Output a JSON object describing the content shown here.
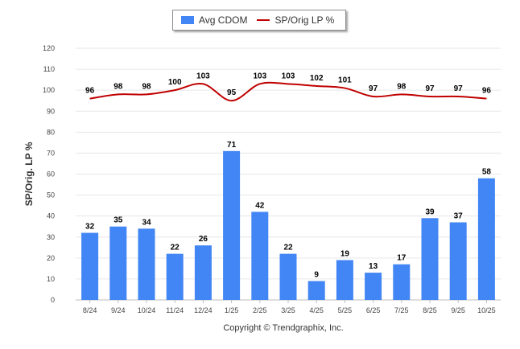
{
  "legend": {
    "bar_label": "Avg CDOM",
    "line_label": "SP/Orig LP %"
  },
  "copyright": "Copyright © Trendgraphix, Inc.",
  "chart_data": {
    "type": "bar",
    "title": "",
    "xlabel": "",
    "ylabel": "SP/Orig. LP %",
    "ylim": [
      0,
      120
    ],
    "yticks": [
      0,
      10,
      20,
      30,
      40,
      50,
      60,
      70,
      80,
      90,
      100,
      110,
      120
    ],
    "grid": true,
    "legend_position": "top-center",
    "categories": [
      "8/24",
      "9/24",
      "10/24",
      "11/24",
      "12/24",
      "1/25",
      "2/25",
      "3/25",
      "4/25",
      "5/25",
      "6/25",
      "7/25",
      "8/25",
      "9/25",
      "10/25"
    ],
    "series": [
      {
        "name": "Avg CDOM",
        "type": "bar",
        "color": "#4285f4",
        "values": [
          32,
          35,
          34,
          22,
          26,
          71,
          42,
          22,
          9,
          19,
          13,
          17,
          39,
          37,
          58
        ]
      },
      {
        "name": "SP/Orig LP %",
        "type": "line",
        "color": "#c00000",
        "values": [
          96,
          98,
          98,
          100,
          103,
          95,
          103,
          103,
          102,
          101,
          97,
          98,
          97,
          97,
          96
        ]
      }
    ]
  }
}
